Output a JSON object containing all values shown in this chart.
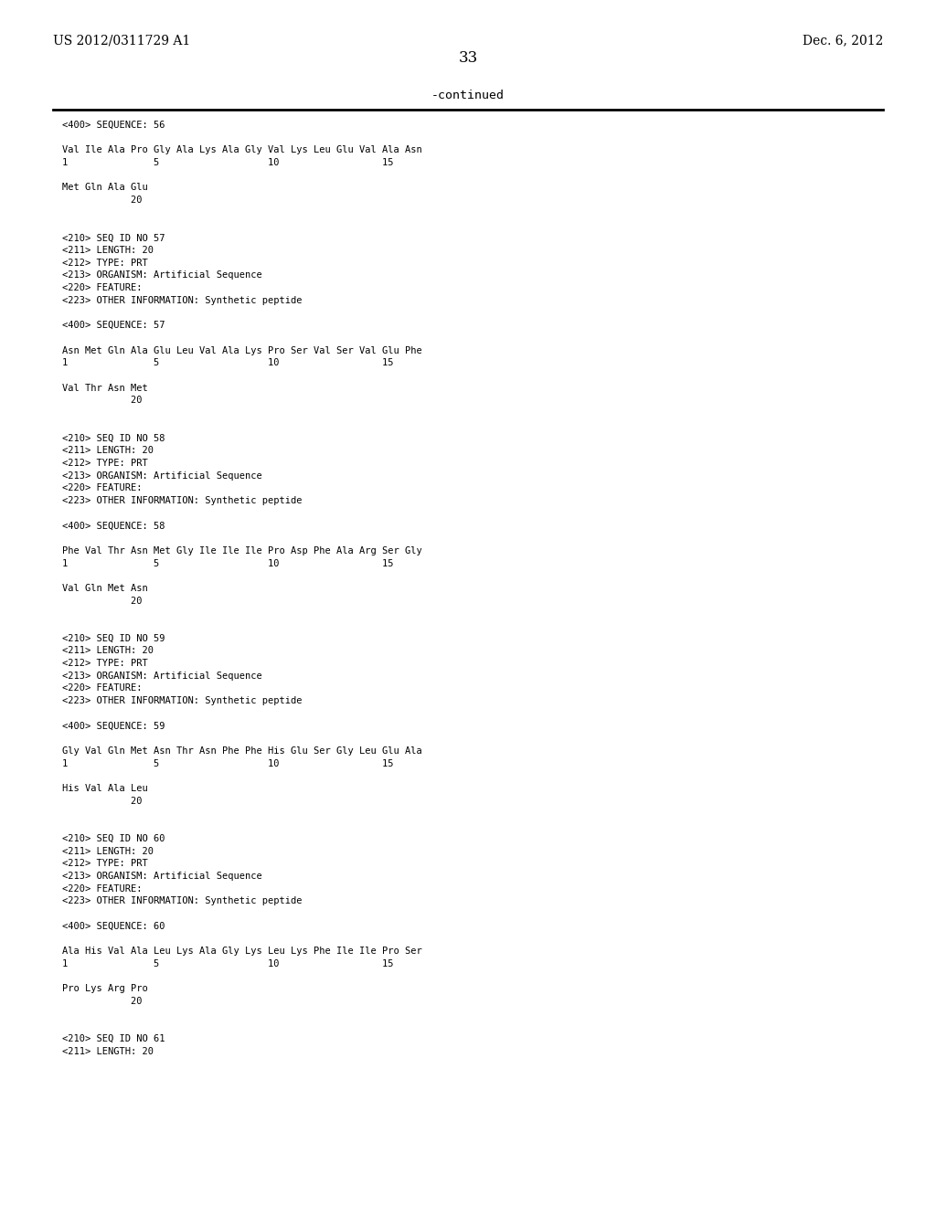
{
  "background_color": "#ffffff",
  "header_left": "US 2012/0311729 A1",
  "header_right": "Dec. 6, 2012",
  "page_number": "33",
  "continued_text": "-continued",
  "content": [
    "<400> SEQUENCE: 56",
    "",
    "Val Ile Ala Pro Gly Ala Lys Ala Gly Val Lys Leu Glu Val Ala Asn",
    "1               5                   10                  15",
    "",
    "Met Gln Ala Glu",
    "            20",
    "",
    "",
    "<210> SEQ ID NO 57",
    "<211> LENGTH: 20",
    "<212> TYPE: PRT",
    "<213> ORGANISM: Artificial Sequence",
    "<220> FEATURE:",
    "<223> OTHER INFORMATION: Synthetic peptide",
    "",
    "<400> SEQUENCE: 57",
    "",
    "Asn Met Gln Ala Glu Leu Val Ala Lys Pro Ser Val Ser Val Glu Phe",
    "1               5                   10                  15",
    "",
    "Val Thr Asn Met",
    "            20",
    "",
    "",
    "<210> SEQ ID NO 58",
    "<211> LENGTH: 20",
    "<212> TYPE: PRT",
    "<213> ORGANISM: Artificial Sequence",
    "<220> FEATURE:",
    "<223> OTHER INFORMATION: Synthetic peptide",
    "",
    "<400> SEQUENCE: 58",
    "",
    "Phe Val Thr Asn Met Gly Ile Ile Ile Pro Asp Phe Ala Arg Ser Gly",
    "1               5                   10                  15",
    "",
    "Val Gln Met Asn",
    "            20",
    "",
    "",
    "<210> SEQ ID NO 59",
    "<211> LENGTH: 20",
    "<212> TYPE: PRT",
    "<213> ORGANISM: Artificial Sequence",
    "<220> FEATURE:",
    "<223> OTHER INFORMATION: Synthetic peptide",
    "",
    "<400> SEQUENCE: 59",
    "",
    "Gly Val Gln Met Asn Thr Asn Phe Phe His Glu Ser Gly Leu Glu Ala",
    "1               5                   10                  15",
    "",
    "His Val Ala Leu",
    "            20",
    "",
    "",
    "<210> SEQ ID NO 60",
    "<211> LENGTH: 20",
    "<212> TYPE: PRT",
    "<213> ORGANISM: Artificial Sequence",
    "<220> FEATURE:",
    "<223> OTHER INFORMATION: Synthetic peptide",
    "",
    "<400> SEQUENCE: 60",
    "",
    "Ala His Val Ala Leu Lys Ala Gly Lys Leu Lys Phe Ile Ile Pro Ser",
    "1               5                   10                  15",
    "",
    "Pro Lys Arg Pro",
    "            20",
    "",
    "",
    "<210> SEQ ID NO 61",
    "<211> LENGTH: 20"
  ],
  "font_size_header": 10,
  "font_size_page": 12,
  "font_size_content": 7.5,
  "font_size_continued": 9.5
}
